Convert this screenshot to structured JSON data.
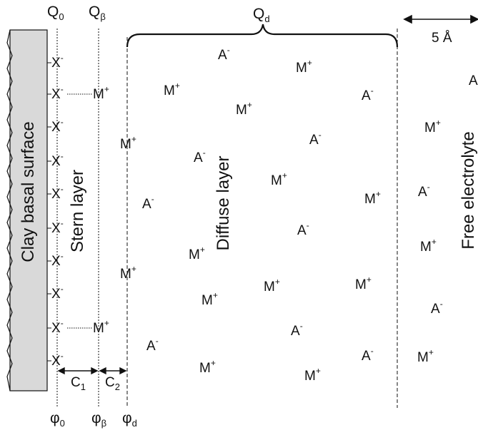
{
  "surface_label": "Clay basal surface",
  "layers": {
    "stern": "Stern layer",
    "diffuse": "Diffuse layer",
    "free": "Free electrolyte"
  },
  "charges": {
    "q0": {
      "base": "Q",
      "sub": "0"
    },
    "qbeta": {
      "base": "Q",
      "sub": "β"
    },
    "qd": {
      "base": "Q",
      "sub": "d"
    }
  },
  "potentials": {
    "phi0": {
      "base": "φ",
      "sub": "0"
    },
    "phibeta": {
      "base": "φ",
      "sub": "β"
    },
    "phid": {
      "base": "φ",
      "sub": "d"
    }
  },
  "capacitances": {
    "c1": {
      "base": "C",
      "sub": "1"
    },
    "c2": {
      "base": "C",
      "sub": "2"
    }
  },
  "scale": "5 Å",
  "ions": {
    "surface_site": {
      "base": "X",
      "sign": "-"
    },
    "cation": {
      "base": "M",
      "sign": "+"
    },
    "anion": {
      "base": "A",
      "sign": "-"
    }
  },
  "surface_site_count": 10,
  "colors": {
    "surface_fill": "#d9d9d9",
    "line": "#111111"
  }
}
